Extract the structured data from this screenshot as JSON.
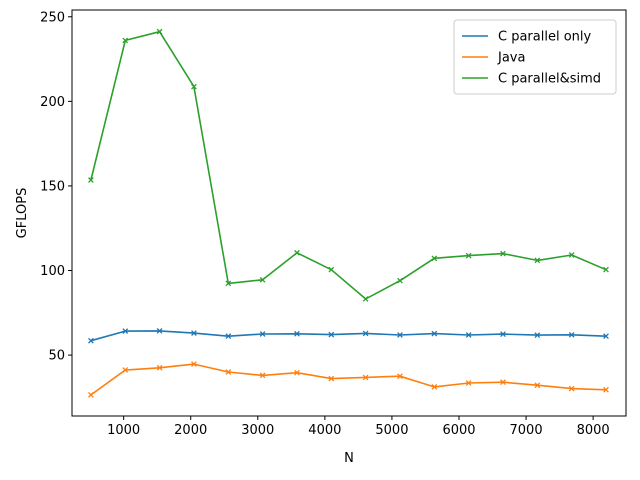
{
  "chart_data": {
    "type": "line",
    "title": "",
    "xlabel": "N",
    "ylabel": "GFLOPS",
    "xlim": [
      230,
      8490
    ],
    "ylim": [
      14,
      254
    ],
    "xticks": [
      1000,
      2000,
      3000,
      4000,
      5000,
      6000,
      7000,
      8000
    ],
    "yticks": [
      50,
      100,
      150,
      200,
      250
    ],
    "grid": false,
    "legend_position": "top-right",
    "x": [
      512,
      1024,
      1536,
      2048,
      2560,
      3072,
      3584,
      4096,
      4608,
      5120,
      5632,
      6144,
      6656,
      7168,
      7680,
      8192
    ],
    "series": [
      {
        "name": "C parallel only",
        "color": "#1f77b4",
        "values": [
          58.5,
          64.2,
          64.3,
          63.0,
          61.2,
          62.5,
          62.6,
          62.1,
          62.8,
          61.9,
          62.7,
          61.9,
          62.4,
          61.8,
          62.0,
          61.2
        ]
      },
      {
        "name": "Java",
        "color": "#ff7f0e",
        "values": [
          26.5,
          41.2,
          42.5,
          44.7,
          40.0,
          38.0,
          39.6,
          36.1,
          36.8,
          37.5,
          31.2,
          33.5,
          34.0,
          32.2,
          30.2,
          29.5
        ]
      },
      {
        "name": "C parallel&simd",
        "color": "#2ca02c",
        "values": [
          153.5,
          236.0,
          241.2,
          208.7,
          92.4,
          94.5,
          110.5,
          100.5,
          83.2,
          94.0,
          107.2,
          108.8,
          110.0,
          106.0,
          109.2,
          100.5
        ]
      }
    ]
  }
}
